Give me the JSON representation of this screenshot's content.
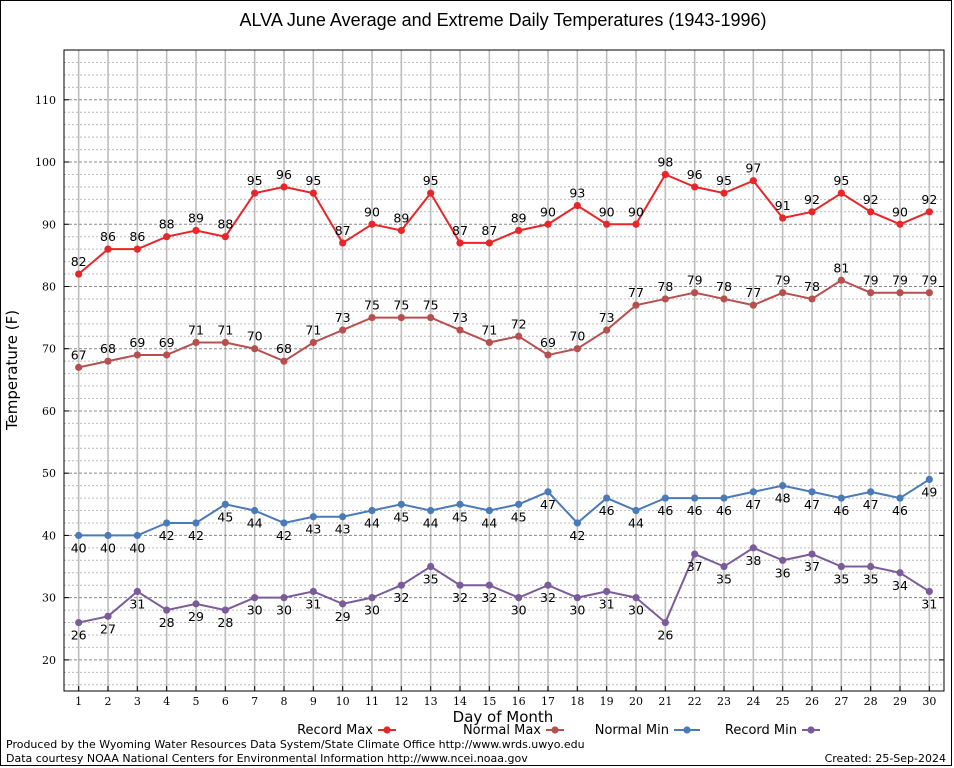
{
  "chart_data": {
    "type": "line",
    "title": "ALVA June Average and Extreme Daily Temperatures (1943-1996)",
    "xlabel": "Day of Month",
    "ylabel": "Temperature (F)",
    "x": [
      1,
      2,
      3,
      4,
      5,
      6,
      7,
      8,
      9,
      10,
      11,
      12,
      13,
      14,
      15,
      16,
      17,
      18,
      19,
      20,
      21,
      22,
      23,
      24,
      25,
      26,
      27,
      28,
      29,
      30
    ],
    "xlim": [
      0.5,
      30.5
    ],
    "ylim": [
      15,
      118
    ],
    "yticks": [
      20,
      30,
      40,
      50,
      60,
      70,
      80,
      90,
      100,
      110
    ],
    "grid": true,
    "legend_position": "bottom",
    "series": [
      {
        "name": "Record Max",
        "color": "#e8262a",
        "label_position": "above",
        "values": [
          82,
          86,
          86,
          88,
          89,
          88,
          95,
          96,
          95,
          87,
          90,
          89,
          95,
          87,
          87,
          89,
          90,
          93,
          90,
          90,
          98,
          96,
          95,
          97,
          91,
          92,
          95,
          92,
          90,
          92
        ]
      },
      {
        "name": "Normal Max",
        "color": "#b84f4f",
        "label_position": "above",
        "values": [
          67,
          68,
          69,
          69,
          71,
          71,
          70,
          68,
          71,
          73,
          75,
          75,
          75,
          73,
          71,
          72,
          69,
          70,
          73,
          77,
          78,
          79,
          78,
          77,
          79,
          78,
          81,
          79,
          79,
          79
        ]
      },
      {
        "name": "Normal Min",
        "color": "#4a7ab7",
        "label_position": "below",
        "values": [
          40,
          40,
          40,
          42,
          42,
          45,
          44,
          42,
          43,
          43,
          44,
          45,
          44,
          45,
          44,
          45,
          47,
          42,
          46,
          44,
          46,
          46,
          46,
          47,
          48,
          47,
          46,
          47,
          46,
          49
        ]
      },
      {
        "name": "Record Min",
        "color": "#7b5c9a",
        "label_position": "below",
        "values": [
          26,
          27,
          31,
          28,
          29,
          28,
          30,
          30,
          31,
          29,
          30,
          32,
          35,
          32,
          32,
          30,
          32,
          30,
          31,
          30,
          26,
          37,
          35,
          38,
          36,
          37,
          35,
          35,
          34,
          31
        ]
      }
    ]
  },
  "footer": {
    "produced_by": "Produced by the Wyoming Water Resources Data System/State Climate Office http://www.wrds.uwyo.edu",
    "courtesy": "Data courtesy NOAA National Centers for Environmental Information http://www.ncei.noaa.gov",
    "created": "Created:  25-Sep-2024"
  }
}
